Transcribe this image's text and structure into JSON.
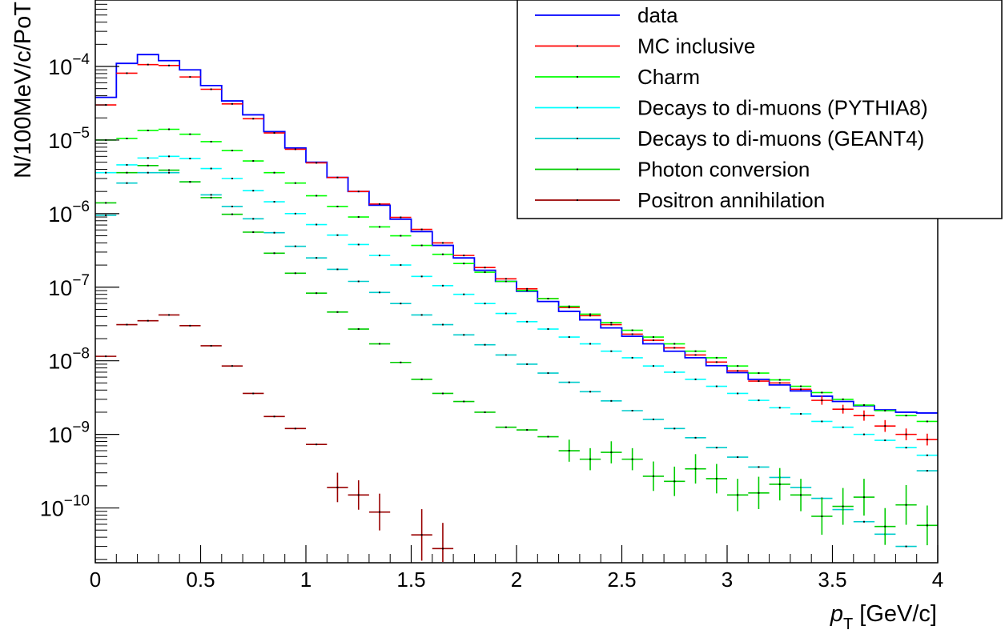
{
  "chart_data": {
    "type": "histogram",
    "xlabel_var": "p",
    "xlabel_sub": "T",
    "xlabel_unit": " [GeV/c]",
    "ylabel": "N/100MeV/c/PoT",
    "xlim": [
      0,
      4
    ],
    "ylim": [
      1.8e-11,
      0.0008
    ],
    "yscale": "log",
    "grid": false,
    "legend_position": "top-right",
    "x_ticks": [
      {
        "v": 0,
        "label": "0"
      },
      {
        "v": 0.5,
        "label": "0.5"
      },
      {
        "v": 1,
        "label": "1"
      },
      {
        "v": 1.5,
        "label": "1.5"
      },
      {
        "v": 2,
        "label": "2"
      },
      {
        "v": 2.5,
        "label": "2.5"
      },
      {
        "v": 3,
        "label": "3"
      },
      {
        "v": 3.5,
        "label": "3.5"
      },
      {
        "v": 4,
        "label": "4"
      }
    ],
    "y_ticks": [
      {
        "v": 1e-10,
        "base": "10",
        "exp": "−10"
      },
      {
        "v": 1e-09,
        "base": "10",
        "exp": "−9"
      },
      {
        "v": 1e-08,
        "base": "10",
        "exp": "−8"
      },
      {
        "v": 1e-07,
        "base": "10",
        "exp": "−7"
      },
      {
        "v": 1e-06,
        "base": "10",
        "exp": "−6"
      },
      {
        "v": 1e-05,
        "base": "10",
        "exp": "−5"
      },
      {
        "v": 0.0001,
        "base": "10",
        "exp": "−4"
      }
    ],
    "bin_width": 0.1,
    "x": [
      0.05,
      0.15,
      0.25,
      0.35,
      0.45,
      0.55,
      0.65,
      0.75,
      0.85,
      0.95,
      1.05,
      1.15,
      1.25,
      1.35,
      1.45,
      1.55,
      1.65,
      1.75,
      1.85,
      1.95,
      2.05,
      2.15,
      2.25,
      2.35,
      2.45,
      2.55,
      2.65,
      2.75,
      2.85,
      2.95,
      3.05,
      3.15,
      3.25,
      3.35,
      3.45,
      3.55,
      3.65,
      3.75,
      3.85,
      3.95
    ],
    "series": [
      {
        "name": "data",
        "color": "#0000ff",
        "style": "step",
        "values": [
          3.8e-05,
          0.00011,
          0.000145,
          0.00012,
          9e-05,
          5.5e-05,
          3.4e-05,
          2.2e-05,
          1.3e-05,
          7.8e-06,
          5e-06,
          3.1e-06,
          2e-06,
          1.3e-06,
          8.4e-07,
          5.7e-07,
          3.7e-07,
          2.5e-07,
          1.7e-07,
          1.2e-07,
          8.8e-08,
          6.4e-08,
          4.7e-08,
          3.6e-08,
          2.8e-08,
          2.15e-08,
          1.7e-08,
          1.35e-08,
          1.1e-08,
          8.6e-09,
          6.9e-09,
          5.6e-09,
          4.7e-09,
          3.9e-09,
          3.3e-09,
          2.8e-09,
          2.45e-09,
          2.15e-09,
          2e-09,
          1.95e-09
        ]
      },
      {
        "name": "MC inclusive",
        "color": "#ff0000",
        "style": "errbar",
        "values": [
          3e-05,
          8.1e-05,
          0.000106,
          0.000103,
          7.2e-05,
          4.9e-05,
          3.1e-05,
          1.95e-05,
          1.25e-05,
          7.5e-06,
          4.9e-06,
          3.1e-06,
          2e-06,
          1.35e-06,
          8.9e-07,
          6.1e-07,
          4e-07,
          2.7e-07,
          1.85e-07,
          1.3e-07,
          9.5e-08,
          7e-08,
          5.3e-08,
          4.1e-08,
          3.1e-08,
          2.3e-08,
          1.9e-08,
          1.5e-08,
          1.2e-08,
          9.6e-09,
          7.3e-09,
          5.3e-09,
          5e-09,
          4.1e-09,
          2.9e-09,
          2.2e-09,
          1.8e-09,
          1.3e-09,
          1e-09,
          8.5e-10
        ],
        "errors": [
          0,
          0,
          0,
          0,
          0,
          0,
          0,
          0,
          0,
          0,
          0,
          0,
          0,
          0,
          0,
          0,
          0,
          0,
          0,
          0,
          0,
          0,
          0,
          0,
          0,
          0,
          0,
          0,
          0,
          0,
          0,
          0,
          0,
          0,
          0.06,
          0.06,
          0.07,
          0.08,
          0.08,
          0.08
        ]
      },
      {
        "name": "Charm",
        "color": "#00ff00",
        "style": "errbar",
        "values": [
          1e-05,
          1.05e-05,
          1.35e-05,
          1.4e-05,
          1.2e-05,
          9.5e-06,
          7.2e-06,
          5.2e-06,
          3.6e-06,
          2.6e-06,
          1.75e-06,
          1.25e-06,
          9e-07,
          6.6e-07,
          5e-07,
          3.7e-07,
          2.8e-07,
          2.1e-07,
          1.6e-07,
          1.2e-07,
          9e-08,
          7e-08,
          5.5e-08,
          4.3e-08,
          3.3e-08,
          2.6e-08,
          2.1e-08,
          1.7e-08,
          1.35e-08,
          1.1e-08,
          8.5e-09,
          6.8e-09,
          5.5e-09,
          4.5e-09,
          3.7e-09,
          3e-09,
          2.5e-09,
          2.1e-09,
          1.8e-09,
          1.5e-09
        ],
        "errors": [
          0,
          0,
          0,
          0,
          0,
          0,
          0,
          0,
          0,
          0,
          0,
          0,
          0,
          0,
          0,
          0,
          0,
          0,
          0,
          0,
          0,
          0,
          0,
          0,
          0,
          0,
          0,
          0,
          0,
          0,
          0,
          0,
          0,
          0,
          0,
          0,
          0,
          0,
          0,
          0
        ]
      },
      {
        "name": "Decays to di-muons (PYTHIA8)",
        "color": "#00ffff",
        "style": "errbar",
        "values": [
          3.6e-06,
          4.6e-06,
          5.7e-06,
          6e-06,
          5.6e-06,
          4.1e-06,
          3e-06,
          2.05e-06,
          1.45e-06,
          1e-06,
          7.1e-07,
          5.1e-07,
          3.8e-07,
          2.7e-07,
          2e-07,
          1.4e-07,
          1.05e-07,
          8e-08,
          6e-08,
          4.4e-08,
          3.4e-08,
          2.7e-08,
          2.1e-08,
          1.7e-08,
          1.35e-08,
          1.1e-08,
          8.5e-09,
          7e-09,
          5.6e-09,
          4.5e-09,
          3.6e-09,
          2.9e-09,
          2.3e-09,
          1.9e-09,
          1.5e-09,
          1.25e-09,
          1e-09,
          8.3e-10,
          6.6e-10,
          5.2e-10
        ],
        "errors": [
          0,
          0,
          0,
          0,
          0,
          0,
          0,
          0,
          0,
          0,
          0,
          0,
          0,
          0,
          0,
          0,
          0,
          0,
          0,
          0,
          0,
          0,
          0,
          0,
          0,
          0,
          0,
          0,
          0,
          0,
          0,
          0,
          0,
          0,
          0,
          0,
          0,
          0,
          0,
          0
        ]
      },
      {
        "name": "Decays to di-muons (GEANT4)",
        "color": "#00cccc",
        "style": "errbar",
        "values": [
          9.5e-07,
          2.6e-06,
          3.6e-06,
          3.6e-06,
          2.7e-06,
          1.8e-06,
          1.25e-06,
          8.5e-07,
          5.5e-07,
          3.6e-07,
          2.5e-07,
          1.75e-07,
          1.2e-07,
          8.5e-08,
          6e-08,
          4.2e-08,
          3.1e-08,
          2.25e-08,
          1.65e-08,
          1.2e-08,
          9e-09,
          6.8e-09,
          5.1e-09,
          3.8e-09,
          2.85e-09,
          2.1e-09,
          1.6e-09,
          1.2e-09,
          9e-10,
          6.6e-10,
          4.9e-10,
          3.6e-10,
          2.6e-10,
          1.9e-10,
          1.35e-10,
          9.5e-11,
          6.5e-11,
          4.4e-11,
          3e-11,
          3.2e-10
        ],
        "errors": [
          0,
          0,
          0,
          0,
          0,
          0,
          0,
          0,
          0,
          0,
          0,
          0,
          0,
          0,
          0,
          0,
          0,
          0,
          0,
          0,
          0,
          0,
          0,
          0,
          0,
          0,
          0,
          0,
          0,
          0,
          0,
          0,
          0,
          0,
          0,
          0,
          0,
          0,
          0,
          0
        ]
      },
      {
        "name": "Photon conversion",
        "color": "#00cc00",
        "style": "errbar",
        "values": [
          1.4e-06,
          3.6e-06,
          4.5e-06,
          3.9e-06,
          2.7e-06,
          1.65e-06,
          9.8e-07,
          5.6e-07,
          2.9e-07,
          1.55e-07,
          8.3e-08,
          4.6e-08,
          2.7e-08,
          1.7e-08,
          9.5e-09,
          5.6e-09,
          3.6e-09,
          2.8e-09,
          2e-09,
          1.25e-09,
          1.15e-09,
          9.3e-10,
          6e-10,
          4.6e-10,
          5.7e-10,
          4.6e-10,
          2.7e-10,
          2.3e-10,
          3.4e-10,
          2.5e-10,
          1.5e-10,
          1.6e-10,
          2.1e-10,
          1.5e-10,
          7.7e-11,
          1.05e-10,
          1.4e-10,
          5.6e-11,
          1.1e-10,
          5.8e-11
        ],
        "errors": [
          0,
          0,
          0,
          0,
          0,
          0,
          0,
          0,
          0,
          0,
          0,
          0,
          0,
          0,
          0,
          0,
          0,
          0,
          0,
          0,
          0,
          0,
          0.15,
          0.15,
          0.15,
          0.15,
          0.2,
          0.2,
          0.2,
          0.2,
          0.22,
          0.22,
          0.22,
          0.22,
          0.25,
          0.25,
          0.25,
          0.25,
          0.27,
          0.27
        ]
      },
      {
        "name": "Positron annihilation",
        "color": "#990000",
        "style": "errbar",
        "values": [
          1.15e-08,
          3.1e-08,
          3.5e-08,
          4.2e-08,
          3e-08,
          1.6e-08,
          8.5e-09,
          3.6e-09,
          1.75e-09,
          1.2e-09,
          7.3e-10,
          1.9e-10,
          1.5e-10,
          8.8e-11,
          null,
          4.3e-11,
          2.8e-11,
          null,
          null,
          null,
          null,
          null,
          null,
          null,
          null,
          null,
          null,
          null,
          null,
          null,
          null,
          null,
          null,
          null,
          null,
          null,
          null,
          null,
          null,
          null
        ],
        "errors": [
          0,
          0,
          0,
          0,
          0,
          0,
          0,
          0,
          0,
          0,
          0,
          0.2,
          0.2,
          0.25,
          0,
          0.35,
          0.35,
          0,
          0,
          0,
          0,
          0,
          0,
          0,
          0,
          0,
          0,
          0,
          0,
          0,
          0,
          0,
          0,
          0,
          0,
          0,
          0,
          0,
          0,
          0
        ]
      }
    ]
  }
}
